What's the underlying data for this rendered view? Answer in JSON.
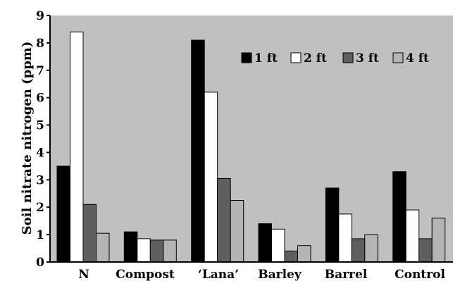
{
  "chart_data": {
    "type": "bar",
    "categories": [
      "N",
      "Compost",
      "‘Lana’",
      "Barley",
      "Barrel",
      "Control"
    ],
    "series": [
      {
        "name": "1 ft",
        "values": [
          3.5,
          1.1,
          8.1,
          1.4,
          2.7,
          3.3
        ]
      },
      {
        "name": "2 ft",
        "values": [
          8.4,
          0.85,
          6.2,
          1.2,
          1.75,
          1.9
        ]
      },
      {
        "name": "3 ft",
        "values": [
          2.1,
          0.8,
          3.05,
          0.4,
          0.85,
          0.85
        ]
      },
      {
        "name": "4 ft",
        "values": [
          1.05,
          0.8,
          2.25,
          0.6,
          1.0,
          1.6
        ]
      }
    ],
    "series_colors": [
      "#000000",
      "#ffffff",
      "#5f5f5f",
      "#b4b4b4"
    ],
    "title": "",
    "xlabel": "",
    "ylabel": "Soil nitrate nitrogen (ppm)",
    "ylim": [
      0,
      9
    ],
    "yticks": [
      "0",
      "1",
      "2",
      "3",
      "4",
      "5",
      "6",
      "7",
      "8",
      "9"
    ],
    "grid": false,
    "plot_background": "#c0c0c0",
    "legend_position": "top-right"
  }
}
